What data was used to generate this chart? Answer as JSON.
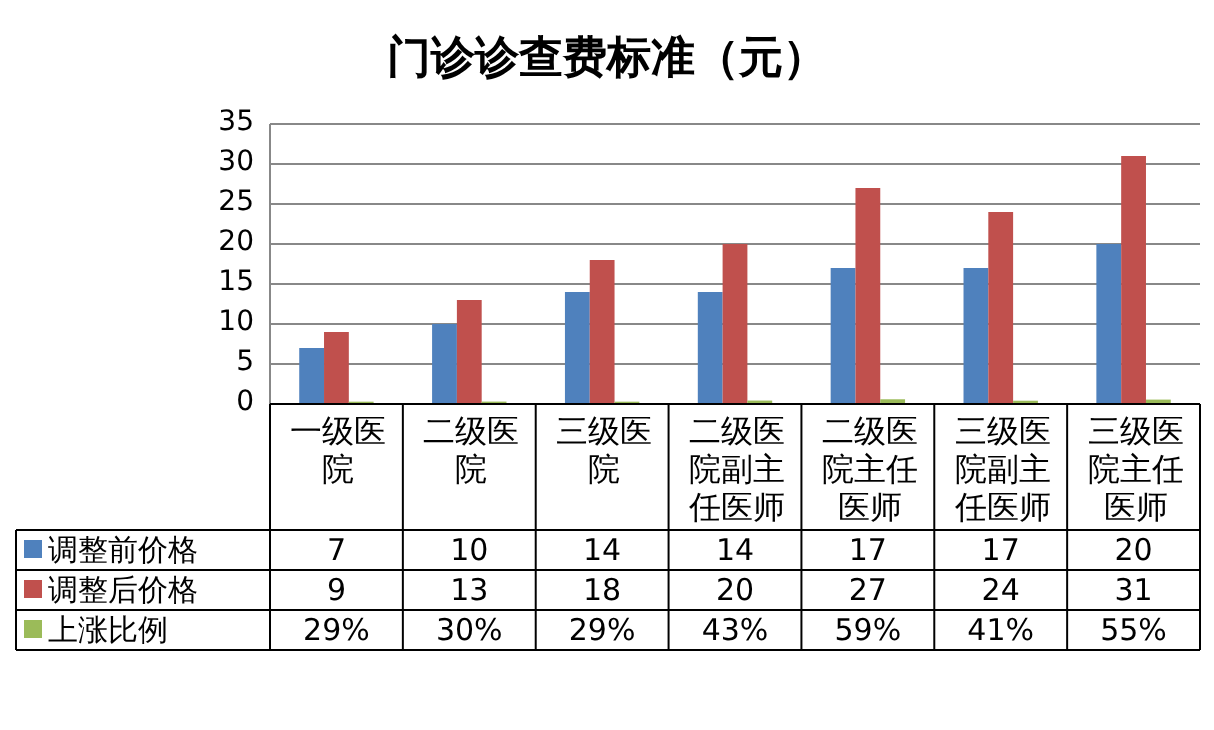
{
  "chart_data": {
    "type": "bar",
    "title": "门诊诊查费标准（元）",
    "categories": [
      "一级医院",
      "二级医院",
      "三级医院",
      "二级医院副主任医师",
      "二级医院主任医师",
      "三级医院副主任医师",
      "三级医院主任医师"
    ],
    "series": [
      {
        "name": "调整前价格",
        "color": "#4f81bd",
        "values": [
          7,
          10,
          14,
          14,
          17,
          17,
          20
        ],
        "value_labels": [
          "7",
          "10",
          "14",
          "14",
          "17",
          "17",
          "20"
        ]
      },
      {
        "name": "调整后价格",
        "color": "#c0504d",
        "values": [
          9,
          13,
          18,
          20,
          27,
          24,
          31
        ],
        "value_labels": [
          "9",
          "13",
          "18",
          "20",
          "27",
          "24",
          "31"
        ]
      },
      {
        "name": "上涨比例",
        "color": "#9bbb59",
        "values": [
          0.29,
          0.3,
          0.29,
          0.43,
          0.59,
          0.41,
          0.55
        ],
        "value_labels": [
          "29%",
          "30%",
          "29%",
          "43%",
          "59%",
          "41%",
          "55%"
        ]
      }
    ],
    "ylim": [
      0,
      35
    ],
    "yticks": [
      0,
      5,
      10,
      15,
      20,
      25,
      30,
      35
    ],
    "grid": "y",
    "legend": "bottom"
  }
}
